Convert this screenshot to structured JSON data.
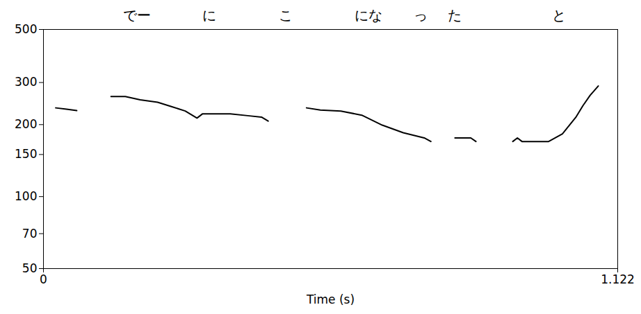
{
  "chart_data": {
    "type": "line",
    "x_label": "Time (s)",
    "xlim": [
      0,
      1.122
    ],
    "xticks": [
      0,
      1.122
    ],
    "ylim": [
      50,
      500
    ],
    "yticks": [
      50,
      70,
      100,
      150,
      200,
      300,
      500
    ],
    "log": "y",
    "color": "#000000",
    "x": [
      0.024,
      0.045,
      0.065,
      0.1,
      0.132,
      0.16,
      0.189,
      0.223,
      0.25,
      0.277,
      0.3,
      0.311,
      0.365,
      0.399,
      0.426,
      0.439,
      0.48,
      0.514,
      0.541,
      0.581,
      0.622,
      0.662,
      0.703,
      0.744,
      0.757,
      0.78,
      0.804,
      0.835,
      0.845,
      0.88,
      0.917,
      0.926,
      0.935,
      0.987,
      1.014,
      1.041,
      1.054,
      1.068,
      1.084
    ],
    "values": [
      235,
      232,
      229,
      null,
      262,
      262,
      254,
      248,
      238,
      228,
      213,
      222,
      222,
      218,
      215,
      207,
      null,
      235,
      230,
      228,
      219,
      199,
      185,
      176,
      170,
      null,
      176,
      176,
      170,
      null,
      170,
      176,
      170,
      170,
      183,
      216,
      240,
      265,
      290
    ],
    "annotations": [
      {
        "text": "でー",
        "x": 0.183
      },
      {
        "text": "に",
        "x": 0.324
      },
      {
        "text": "こ",
        "x": 0.473
      },
      {
        "text": "にな",
        "x": 0.635
      },
      {
        "text": "っ",
        "x": 0.737
      },
      {
        "text": "た",
        "x": 0.804
      },
      {
        "text": "と",
        "x": 1.007
      }
    ]
  }
}
